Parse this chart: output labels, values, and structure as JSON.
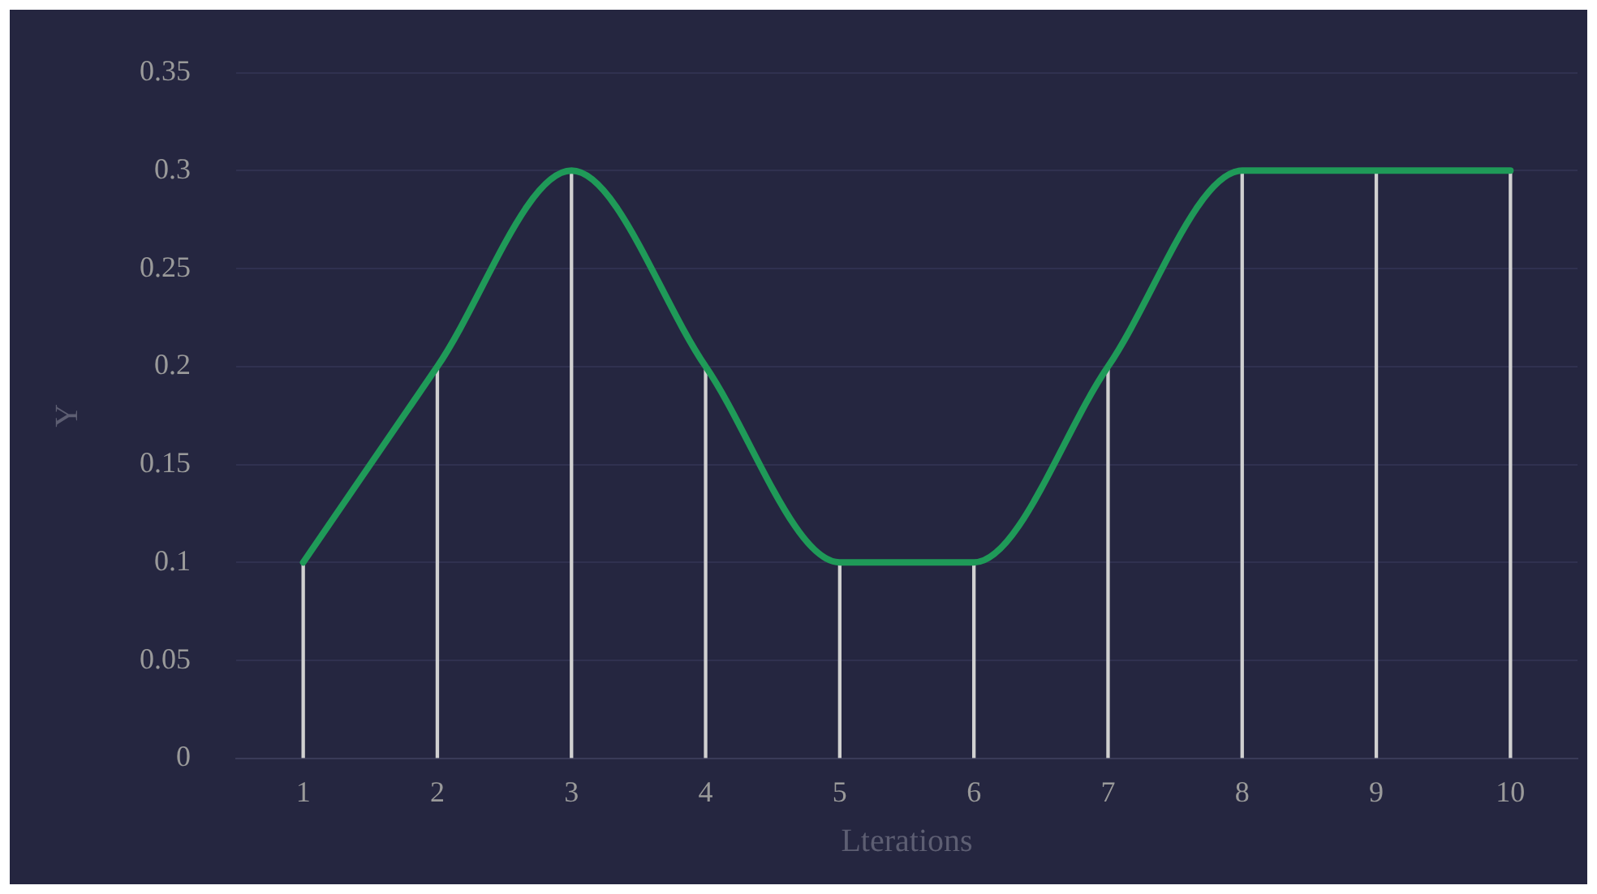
{
  "chart_data": {
    "type": "line",
    "xlabel": "Lterations",
    "ylabel": "Y",
    "categories": [
      "1",
      "2",
      "3",
      "4",
      "5",
      "6",
      "7",
      "8",
      "9",
      "10"
    ],
    "series": [
      {
        "color": "#1f9a58",
        "values": [
          0.1,
          0.2,
          0.3,
          0.2,
          0.1,
          0.1,
          0.2,
          0.3,
          0.3,
          0.3
        ]
      },
      {
        "type": "bar",
        "color": "#d0d0d0",
        "values": [
          0.1,
          0.2,
          0.3,
          0.2,
          0.1,
          0.1,
          0.2,
          0.3,
          0.3,
          0.3
        ]
      }
    ],
    "ylim": [
      0,
      0.35
    ],
    "yticks": [
      0,
      0.05,
      0.1,
      0.15,
      0.2,
      0.25,
      0.3,
      0.35
    ],
    "grid": "y",
    "legend": false,
    "marker": "none",
    "line_style": "solid"
  }
}
